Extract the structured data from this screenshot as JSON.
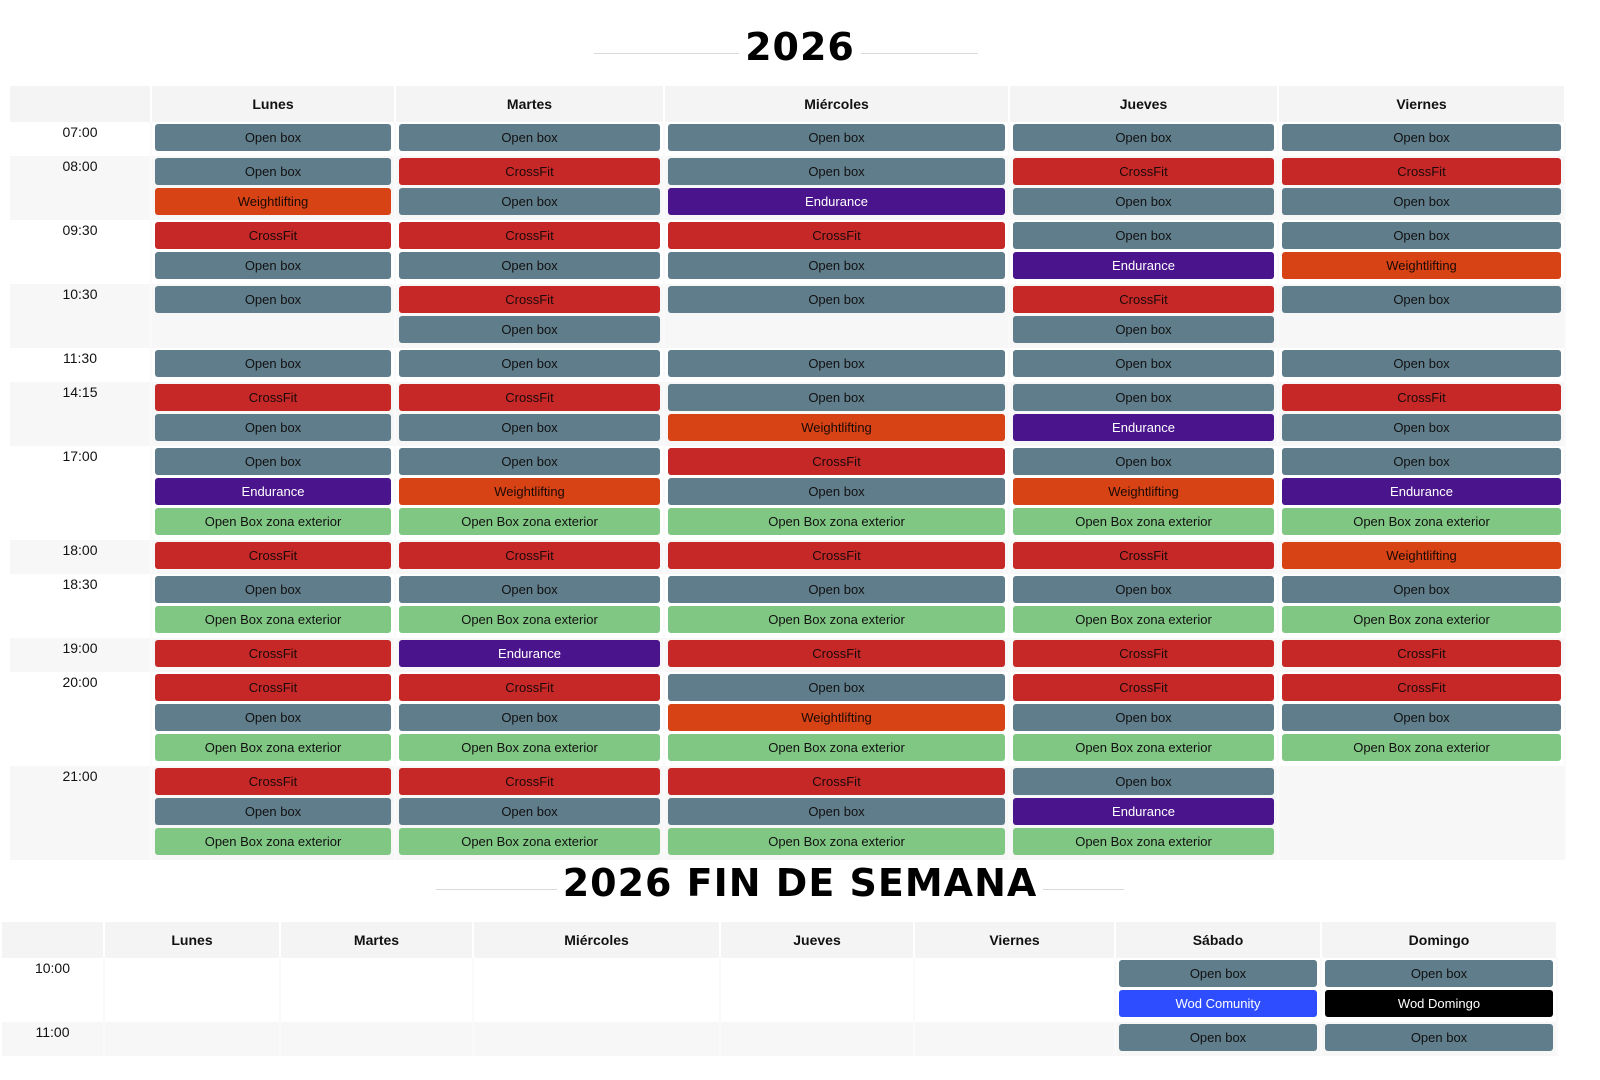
{
  "weekday": {
    "title": "2026",
    "days": [
      "Lunes",
      "Martes",
      "Miércoles",
      "Jueves",
      "Viernes"
    ],
    "rows": [
      {
        "time": "07:00",
        "cells": [
          [
            [
              "Open box",
              "open"
            ]
          ],
          [
            [
              "Open box",
              "open"
            ]
          ],
          [
            [
              "Open box",
              "open"
            ]
          ],
          [
            [
              "Open box",
              "open"
            ]
          ],
          [
            [
              "Open box",
              "open"
            ]
          ]
        ]
      },
      {
        "time": "08:00",
        "cells": [
          [
            [
              "Open box",
              "open"
            ],
            [
              "Weightlifting",
              "weight"
            ]
          ],
          [
            [
              "CrossFit",
              "crossfit"
            ],
            [
              "Open box",
              "open"
            ]
          ],
          [
            [
              "Open box",
              "open"
            ],
            [
              "Endurance",
              "endurance"
            ]
          ],
          [
            [
              "CrossFit",
              "crossfit"
            ],
            [
              "Open box",
              "open"
            ]
          ],
          [
            [
              "CrossFit",
              "crossfit"
            ],
            [
              "Open box",
              "open"
            ]
          ]
        ]
      },
      {
        "time": "09:30",
        "cells": [
          [
            [
              "CrossFit",
              "crossfit"
            ],
            [
              "Open box",
              "open"
            ]
          ],
          [
            [
              "CrossFit",
              "crossfit"
            ],
            [
              "Open box",
              "open"
            ]
          ],
          [
            [
              "CrossFit",
              "crossfit"
            ],
            [
              "Open box",
              "open"
            ]
          ],
          [
            [
              "Open box",
              "open"
            ],
            [
              "Endurance",
              "endurance"
            ]
          ],
          [
            [
              "Open box",
              "open"
            ],
            [
              "Weightlifting",
              "weight"
            ]
          ]
        ]
      },
      {
        "time": "10:30",
        "cells": [
          [
            [
              "Open box",
              "open"
            ]
          ],
          [
            [
              "CrossFit",
              "crossfit"
            ],
            [
              "Open box",
              "open"
            ]
          ],
          [
            [
              "Open box",
              "open"
            ]
          ],
          [
            [
              "CrossFit",
              "crossfit"
            ],
            [
              "Open box",
              "open"
            ]
          ],
          [
            [
              "Open box",
              "open"
            ]
          ]
        ]
      },
      {
        "time": "11:30",
        "cells": [
          [
            [
              "Open box",
              "open"
            ]
          ],
          [
            [
              "Open box",
              "open"
            ]
          ],
          [
            [
              "Open box",
              "open"
            ]
          ],
          [
            [
              "Open box",
              "open"
            ]
          ],
          [
            [
              "Open box",
              "open"
            ]
          ]
        ]
      },
      {
        "time": "14:15",
        "cells": [
          [
            [
              "CrossFit",
              "crossfit"
            ],
            [
              "Open box",
              "open"
            ]
          ],
          [
            [
              "CrossFit",
              "crossfit"
            ],
            [
              "Open box",
              "open"
            ]
          ],
          [
            [
              "Open box",
              "open"
            ],
            [
              "Weightlifting",
              "weight"
            ]
          ],
          [
            [
              "Open box",
              "open"
            ],
            [
              "Endurance",
              "endurance"
            ]
          ],
          [
            [
              "CrossFit",
              "crossfit"
            ],
            [
              "Open box",
              "open"
            ]
          ]
        ]
      },
      {
        "time": "17:00",
        "cells": [
          [
            [
              "Open box",
              "open"
            ],
            [
              "Endurance",
              "endurance"
            ],
            [
              "Open Box zona exterior",
              "exterior"
            ]
          ],
          [
            [
              "Open box",
              "open"
            ],
            [
              "Weightlifting",
              "weight"
            ],
            [
              "Open Box zona exterior",
              "exterior"
            ]
          ],
          [
            [
              "CrossFit",
              "crossfit"
            ],
            [
              "Open box",
              "open"
            ],
            [
              "Open Box zona exterior",
              "exterior"
            ]
          ],
          [
            [
              "Open box",
              "open"
            ],
            [
              "Weightlifting",
              "weight"
            ],
            [
              "Open Box zona exterior",
              "exterior"
            ]
          ],
          [
            [
              "Open box",
              "open"
            ],
            [
              "Endurance",
              "endurance"
            ],
            [
              "Open Box zona exterior",
              "exterior"
            ]
          ]
        ]
      },
      {
        "time": "18:00",
        "cells": [
          [
            [
              "CrossFit",
              "crossfit"
            ]
          ],
          [
            [
              "CrossFit",
              "crossfit"
            ]
          ],
          [
            [
              "CrossFit",
              "crossfit"
            ]
          ],
          [
            [
              "CrossFit",
              "crossfit"
            ]
          ],
          [
            [
              "Weightlifting",
              "weight"
            ]
          ]
        ]
      },
      {
        "time": "18:30",
        "cells": [
          [
            [
              "Open box",
              "open"
            ],
            [
              "Open Box zona exterior",
              "exterior"
            ]
          ],
          [
            [
              "Open box",
              "open"
            ],
            [
              "Open Box zona exterior",
              "exterior"
            ]
          ],
          [
            [
              "Open box",
              "open"
            ],
            [
              "Open Box zona exterior",
              "exterior"
            ]
          ],
          [
            [
              "Open box",
              "open"
            ],
            [
              "Open Box zona exterior",
              "exterior"
            ]
          ],
          [
            [
              "Open box",
              "open"
            ],
            [
              "Open Box zona exterior",
              "exterior"
            ]
          ]
        ]
      },
      {
        "time": "19:00",
        "cells": [
          [
            [
              "CrossFit",
              "crossfit"
            ]
          ],
          [
            [
              "Endurance",
              "endurance"
            ]
          ],
          [
            [
              "CrossFit",
              "crossfit"
            ]
          ],
          [
            [
              "CrossFit",
              "crossfit"
            ]
          ],
          [
            [
              "CrossFit",
              "crossfit"
            ]
          ]
        ]
      },
      {
        "time": "20:00",
        "cells": [
          [
            [
              "CrossFit",
              "crossfit"
            ],
            [
              "Open box",
              "open"
            ],
            [
              "Open Box zona exterior",
              "exterior"
            ]
          ],
          [
            [
              "CrossFit",
              "crossfit"
            ],
            [
              "Open box",
              "open"
            ],
            [
              "Open Box zona exterior",
              "exterior"
            ]
          ],
          [
            [
              "Open box",
              "open"
            ],
            [
              "Weightlifting",
              "weight"
            ],
            [
              "Open Box zona exterior",
              "exterior"
            ]
          ],
          [
            [
              "CrossFit",
              "crossfit"
            ],
            [
              "Open box",
              "open"
            ],
            [
              "Open Box zona exterior",
              "exterior"
            ]
          ],
          [
            [
              "CrossFit",
              "crossfit"
            ],
            [
              "Open box",
              "open"
            ],
            [
              "Open Box zona exterior",
              "exterior"
            ]
          ]
        ]
      },
      {
        "time": "21:00",
        "cells": [
          [
            [
              "CrossFit",
              "crossfit"
            ],
            [
              "Open box",
              "open"
            ],
            [
              "Open Box zona exterior",
              "exterior"
            ]
          ],
          [
            [
              "CrossFit",
              "crossfit"
            ],
            [
              "Open box",
              "open"
            ],
            [
              "Open Box zona exterior",
              "exterior"
            ]
          ],
          [
            [
              "CrossFit",
              "crossfit"
            ],
            [
              "Open box",
              "open"
            ],
            [
              "Open Box zona exterior",
              "exterior"
            ]
          ],
          [
            [
              "Open box",
              "open"
            ],
            [
              "Endurance",
              "endurance"
            ],
            [
              "Open Box zona exterior",
              "exterior"
            ]
          ],
          []
        ]
      }
    ]
  },
  "weekend": {
    "title": "2026 FIN DE SEMANA",
    "days": [
      "Lunes",
      "Martes",
      "Miércoles",
      "Jueves",
      "Viernes",
      "Sábado",
      "Domingo"
    ],
    "rows": [
      {
        "time": "10:00",
        "cells": [
          [],
          [],
          [],
          [],
          [],
          [
            [
              "Open box",
              "open"
            ],
            [
              "Wod Comunity",
              "wodc"
            ]
          ],
          [
            [
              "Open box",
              "open"
            ],
            [
              "Wod Domingo",
              "wodd"
            ]
          ]
        ]
      },
      {
        "time": "11:00",
        "cells": [
          [],
          [],
          [],
          [],
          [],
          [
            [
              "Open box",
              "open"
            ]
          ],
          [
            [
              "Open box",
              "open"
            ]
          ]
        ]
      }
    ]
  },
  "colors": {
    "open_box": "#607d8b",
    "crossfit": "#c62828",
    "weightlifting": "#d84315",
    "endurance": "#4a148c",
    "exterior": "#81c784",
    "wod_comunity": "#2e4dff",
    "wod_domingo": "#000000"
  }
}
